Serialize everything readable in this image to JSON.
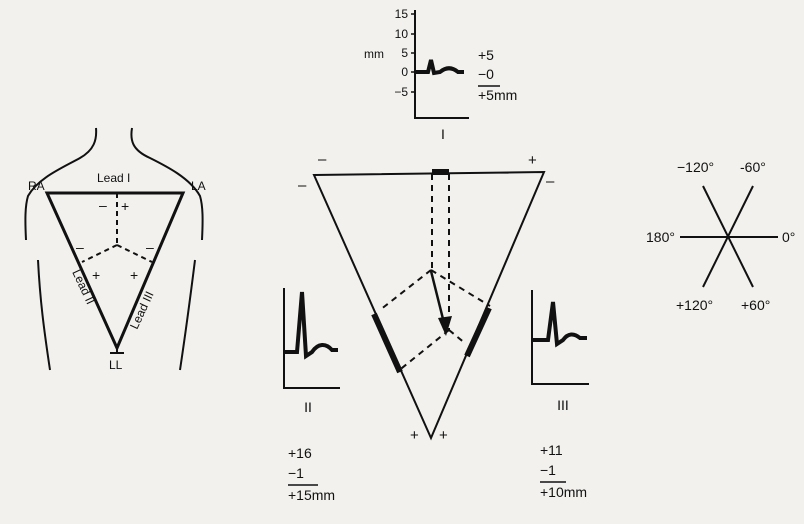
{
  "chest": {
    "ra": "RA",
    "la": "LA",
    "ll": "LL",
    "lead_i": "Lead I",
    "lead_ii": "Lead II",
    "lead_iii": "Lead III",
    "minus": "–",
    "plus": "+"
  },
  "lead_i_trace": {
    "unit": "mm",
    "ticks": [
      "15",
      "10",
      "5",
      "0",
      "−5"
    ],
    "label": "I",
    "calc": {
      "line1": "+5",
      "line2": "−0",
      "line3": "+5mm"
    }
  },
  "lead_ii_trace": {
    "label": "II",
    "calc": {
      "line1": "+16",
      "line2": "−1",
      "line3": "+15mm"
    }
  },
  "lead_iii_trace": {
    "label": "III",
    "calc": {
      "line1": "+11",
      "line2": "−1",
      "line3": "+10mm"
    }
  },
  "triangle": {
    "top_left_sign": "–",
    "top_right_sign": "+",
    "left_sign": "–",
    "right_sign": "–",
    "bottom_left_sign": "+",
    "bottom_right_sign": "+"
  },
  "hexaxial": {
    "deg_neg120": "−120°",
    "deg_neg60": "-60°",
    "deg_180": "180°",
    "deg_0": "0°",
    "deg_pos120": "+120°",
    "deg_pos60": "+60°"
  }
}
